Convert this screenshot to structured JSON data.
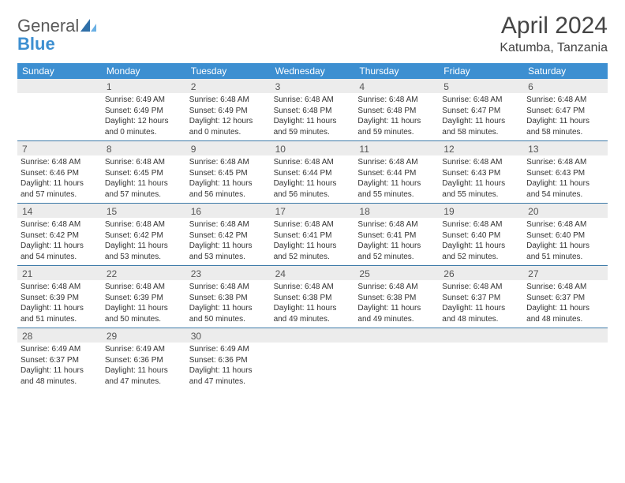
{
  "brand": {
    "name_gray": "General",
    "name_blue": "Blue"
  },
  "title": "April 2024",
  "location": "Katumba, Tanzania",
  "weekdays": [
    "Sunday",
    "Monday",
    "Tuesday",
    "Wednesday",
    "Thursday",
    "Friday",
    "Saturday"
  ],
  "colors": {
    "header_bg": "#3d8fd1",
    "header_text": "#ffffff",
    "daynum_bg": "#ececec",
    "row_border": "#3d7aa8"
  },
  "weeks": [
    [
      {
        "n": "",
        "sr": "",
        "ss": "",
        "dl": "",
        "dl2": ""
      },
      {
        "n": "1",
        "sr": "Sunrise: 6:49 AM",
        "ss": "Sunset: 6:49 PM",
        "dl": "Daylight: 12 hours",
        "dl2": "and 0 minutes."
      },
      {
        "n": "2",
        "sr": "Sunrise: 6:48 AM",
        "ss": "Sunset: 6:49 PM",
        "dl": "Daylight: 12 hours",
        "dl2": "and 0 minutes."
      },
      {
        "n": "3",
        "sr": "Sunrise: 6:48 AM",
        "ss": "Sunset: 6:48 PM",
        "dl": "Daylight: 11 hours",
        "dl2": "and 59 minutes."
      },
      {
        "n": "4",
        "sr": "Sunrise: 6:48 AM",
        "ss": "Sunset: 6:48 PM",
        "dl": "Daylight: 11 hours",
        "dl2": "and 59 minutes."
      },
      {
        "n": "5",
        "sr": "Sunrise: 6:48 AM",
        "ss": "Sunset: 6:47 PM",
        "dl": "Daylight: 11 hours",
        "dl2": "and 58 minutes."
      },
      {
        "n": "6",
        "sr": "Sunrise: 6:48 AM",
        "ss": "Sunset: 6:47 PM",
        "dl": "Daylight: 11 hours",
        "dl2": "and 58 minutes."
      }
    ],
    [
      {
        "n": "7",
        "sr": "Sunrise: 6:48 AM",
        "ss": "Sunset: 6:46 PM",
        "dl": "Daylight: 11 hours",
        "dl2": "and 57 minutes."
      },
      {
        "n": "8",
        "sr": "Sunrise: 6:48 AM",
        "ss": "Sunset: 6:45 PM",
        "dl": "Daylight: 11 hours",
        "dl2": "and 57 minutes."
      },
      {
        "n": "9",
        "sr": "Sunrise: 6:48 AM",
        "ss": "Sunset: 6:45 PM",
        "dl": "Daylight: 11 hours",
        "dl2": "and 56 minutes."
      },
      {
        "n": "10",
        "sr": "Sunrise: 6:48 AM",
        "ss": "Sunset: 6:44 PM",
        "dl": "Daylight: 11 hours",
        "dl2": "and 56 minutes."
      },
      {
        "n": "11",
        "sr": "Sunrise: 6:48 AM",
        "ss": "Sunset: 6:44 PM",
        "dl": "Daylight: 11 hours",
        "dl2": "and 55 minutes."
      },
      {
        "n": "12",
        "sr": "Sunrise: 6:48 AM",
        "ss": "Sunset: 6:43 PM",
        "dl": "Daylight: 11 hours",
        "dl2": "and 55 minutes."
      },
      {
        "n": "13",
        "sr": "Sunrise: 6:48 AM",
        "ss": "Sunset: 6:43 PM",
        "dl": "Daylight: 11 hours",
        "dl2": "and 54 minutes."
      }
    ],
    [
      {
        "n": "14",
        "sr": "Sunrise: 6:48 AM",
        "ss": "Sunset: 6:42 PM",
        "dl": "Daylight: 11 hours",
        "dl2": "and 54 minutes."
      },
      {
        "n": "15",
        "sr": "Sunrise: 6:48 AM",
        "ss": "Sunset: 6:42 PM",
        "dl": "Daylight: 11 hours",
        "dl2": "and 53 minutes."
      },
      {
        "n": "16",
        "sr": "Sunrise: 6:48 AM",
        "ss": "Sunset: 6:42 PM",
        "dl": "Daylight: 11 hours",
        "dl2": "and 53 minutes."
      },
      {
        "n": "17",
        "sr": "Sunrise: 6:48 AM",
        "ss": "Sunset: 6:41 PM",
        "dl": "Daylight: 11 hours",
        "dl2": "and 52 minutes."
      },
      {
        "n": "18",
        "sr": "Sunrise: 6:48 AM",
        "ss": "Sunset: 6:41 PM",
        "dl": "Daylight: 11 hours",
        "dl2": "and 52 minutes."
      },
      {
        "n": "19",
        "sr": "Sunrise: 6:48 AM",
        "ss": "Sunset: 6:40 PM",
        "dl": "Daylight: 11 hours",
        "dl2": "and 52 minutes."
      },
      {
        "n": "20",
        "sr": "Sunrise: 6:48 AM",
        "ss": "Sunset: 6:40 PM",
        "dl": "Daylight: 11 hours",
        "dl2": "and 51 minutes."
      }
    ],
    [
      {
        "n": "21",
        "sr": "Sunrise: 6:48 AM",
        "ss": "Sunset: 6:39 PM",
        "dl": "Daylight: 11 hours",
        "dl2": "and 51 minutes."
      },
      {
        "n": "22",
        "sr": "Sunrise: 6:48 AM",
        "ss": "Sunset: 6:39 PM",
        "dl": "Daylight: 11 hours",
        "dl2": "and 50 minutes."
      },
      {
        "n": "23",
        "sr": "Sunrise: 6:48 AM",
        "ss": "Sunset: 6:38 PM",
        "dl": "Daylight: 11 hours",
        "dl2": "and 50 minutes."
      },
      {
        "n": "24",
        "sr": "Sunrise: 6:48 AM",
        "ss": "Sunset: 6:38 PM",
        "dl": "Daylight: 11 hours",
        "dl2": "and 49 minutes."
      },
      {
        "n": "25",
        "sr": "Sunrise: 6:48 AM",
        "ss": "Sunset: 6:38 PM",
        "dl": "Daylight: 11 hours",
        "dl2": "and 49 minutes."
      },
      {
        "n": "26",
        "sr": "Sunrise: 6:48 AM",
        "ss": "Sunset: 6:37 PM",
        "dl": "Daylight: 11 hours",
        "dl2": "and 48 minutes."
      },
      {
        "n": "27",
        "sr": "Sunrise: 6:48 AM",
        "ss": "Sunset: 6:37 PM",
        "dl": "Daylight: 11 hours",
        "dl2": "and 48 minutes."
      }
    ],
    [
      {
        "n": "28",
        "sr": "Sunrise: 6:49 AM",
        "ss": "Sunset: 6:37 PM",
        "dl": "Daylight: 11 hours",
        "dl2": "and 48 minutes."
      },
      {
        "n": "29",
        "sr": "Sunrise: 6:49 AM",
        "ss": "Sunset: 6:36 PM",
        "dl": "Daylight: 11 hours",
        "dl2": "and 47 minutes."
      },
      {
        "n": "30",
        "sr": "Sunrise: 6:49 AM",
        "ss": "Sunset: 6:36 PM",
        "dl": "Daylight: 11 hours",
        "dl2": "and 47 minutes."
      },
      {
        "n": "",
        "sr": "",
        "ss": "",
        "dl": "",
        "dl2": ""
      },
      {
        "n": "",
        "sr": "",
        "ss": "",
        "dl": "",
        "dl2": ""
      },
      {
        "n": "",
        "sr": "",
        "ss": "",
        "dl": "",
        "dl2": ""
      },
      {
        "n": "",
        "sr": "",
        "ss": "",
        "dl": "",
        "dl2": ""
      }
    ]
  ]
}
